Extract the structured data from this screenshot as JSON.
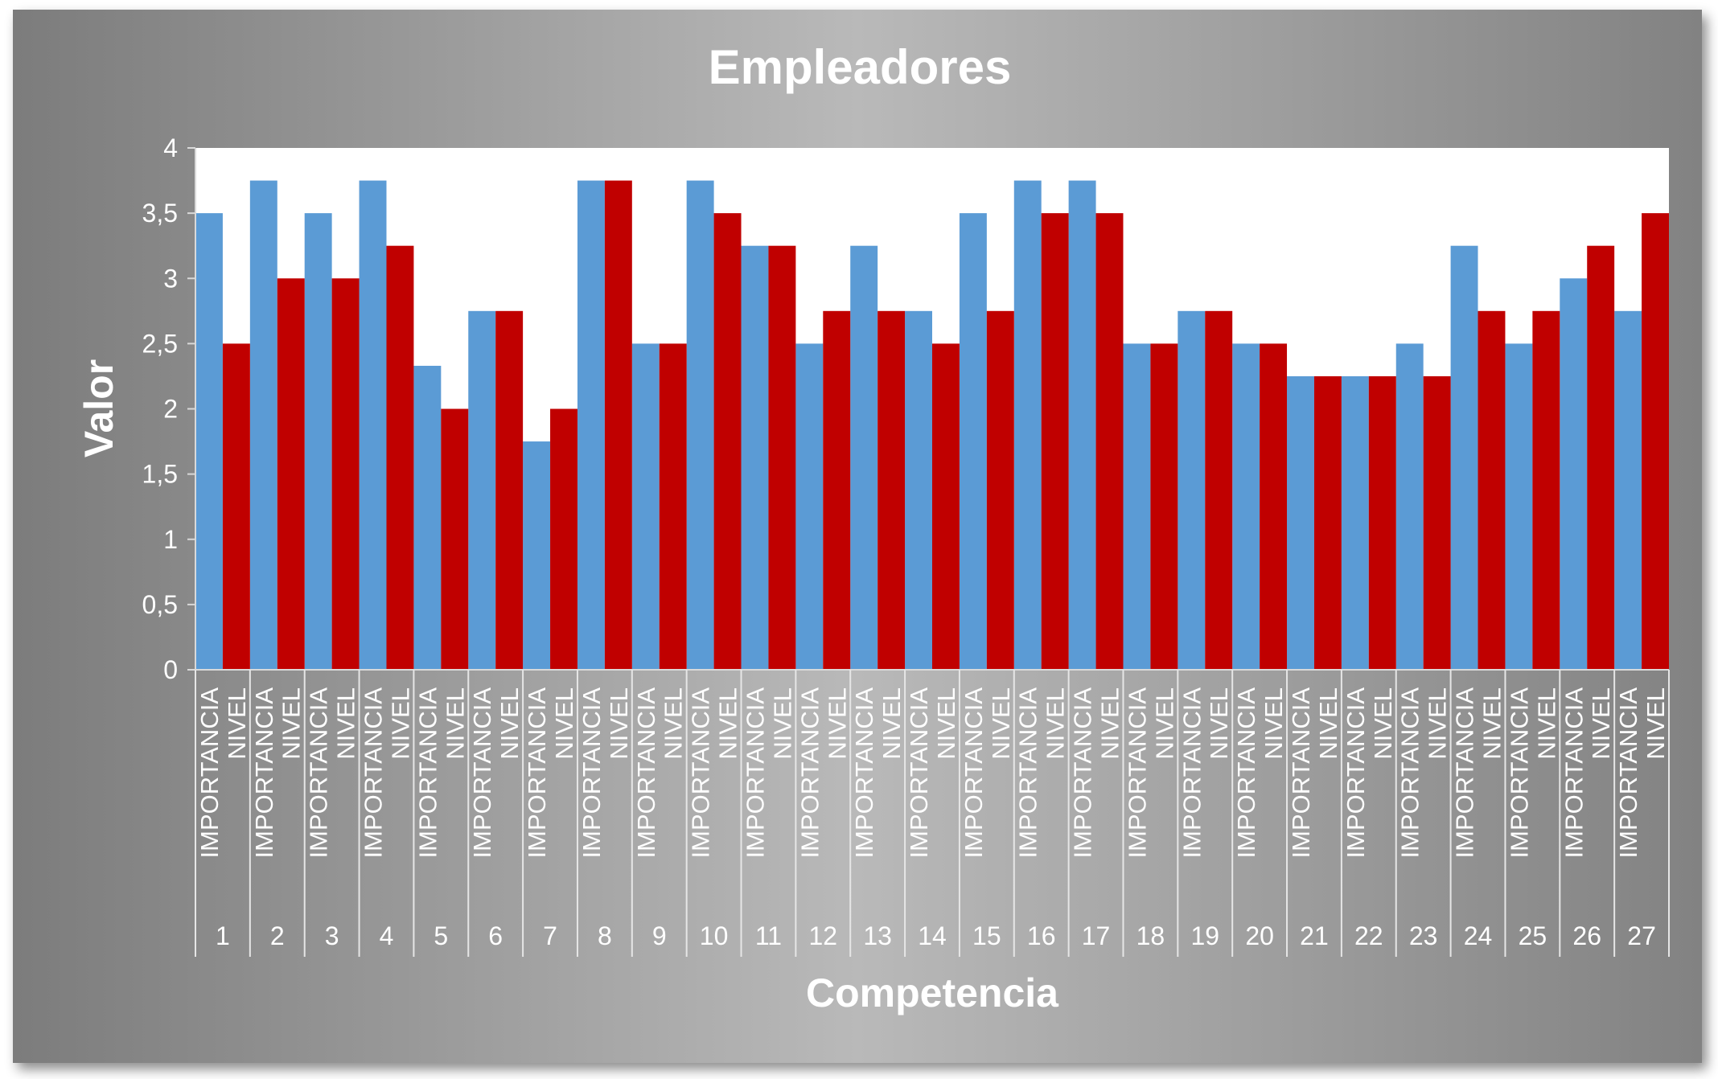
{
  "chart_data": {
    "type": "bar",
    "title": "Empleadores",
    "xlabel": "Competencia",
    "ylabel": "Valor",
    "ylim": [
      0,
      4
    ],
    "yticks": [
      "0",
      "0,5",
      "1",
      "1,5",
      "2",
      "2,5",
      "3",
      "3,5",
      "4"
    ],
    "grid": false,
    "legend": null,
    "categories": [
      "1",
      "2",
      "3",
      "4",
      "5",
      "6",
      "7",
      "8",
      "9",
      "10",
      "11",
      "12",
      "13",
      "14",
      "15",
      "16",
      "17",
      "18",
      "19",
      "20",
      "21",
      "22",
      "23",
      "24",
      "25",
      "26",
      "27"
    ],
    "series": [
      {
        "name": "IMPORTANCIA",
        "color": "#5b9bd5",
        "values": [
          3.5,
          3.75,
          3.5,
          3.75,
          2.33,
          2.75,
          1.75,
          3.75,
          2.5,
          3.75,
          3.25,
          2.5,
          3.25,
          2.75,
          3.5,
          3.75,
          3.75,
          2.5,
          2.75,
          2.5,
          2.25,
          2.25,
          2.5,
          3.25,
          2.5,
          3.0,
          2.75
        ]
      },
      {
        "name": "NIVEL",
        "color": "#c00000",
        "values": [
          2.5,
          3.0,
          3.0,
          3.25,
          2.0,
          2.75,
          2.0,
          3.75,
          2.5,
          3.5,
          3.25,
          2.75,
          2.75,
          2.5,
          2.75,
          3.5,
          3.5,
          2.5,
          2.75,
          2.5,
          2.25,
          2.25,
          2.25,
          2.75,
          2.75,
          3.25,
          3.5
        ]
      }
    ]
  }
}
